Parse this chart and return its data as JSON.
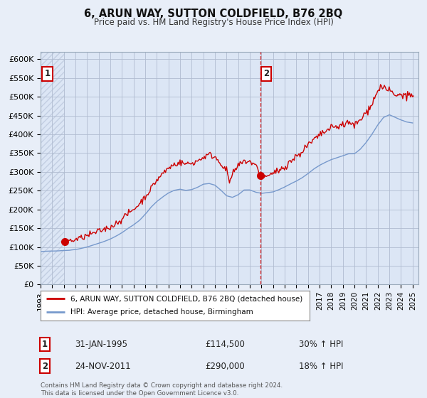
{
  "title1": "6, ARUN WAY, SUTTON COLDFIELD, B76 2BQ",
  "title2": "Price paid vs. HM Land Registry's House Price Index (HPI)",
  "bg_color": "#e8eef8",
  "plot_bg": "#dce6f5",
  "red_color": "#cc0000",
  "blue_color": "#7799cc",
  "grid_color": "#b0bcd0",
  "legend1": "6, ARUN WAY, SUTTON COLDFIELD, B76 2BQ (detached house)",
  "legend2": "HPI: Average price, detached house, Birmingham",
  "annotation1_label": "1",
  "annotation1_date": "31-JAN-1995",
  "annotation1_price": "£114,500",
  "annotation1_hpi": "30% ↑ HPI",
  "annotation2_label": "2",
  "annotation2_date": "24-NOV-2011",
  "annotation2_price": "£290,000",
  "annotation2_hpi": "18% ↑ HPI",
  "footer": "Contains HM Land Registry data © Crown copyright and database right 2024.\nThis data is licensed under the Open Government Licence v3.0.",
  "sale1_x": 1995.08,
  "sale1_y": 114500,
  "sale2_x": 2011.9,
  "sale2_y": 290000,
  "vline_x": 2011.9,
  "ylim": [
    0,
    620000
  ],
  "xlim_start": 1993.0,
  "xlim_end": 2025.5,
  "yticks": [
    0,
    50000,
    100000,
    150000,
    200000,
    250000,
    300000,
    350000,
    400000,
    450000,
    500000,
    550000,
    600000
  ],
  "xticks": [
    1993,
    1994,
    1995,
    1996,
    1997,
    1998,
    1999,
    2000,
    2001,
    2002,
    2003,
    2004,
    2005,
    2006,
    2007,
    2008,
    2009,
    2010,
    2011,
    2012,
    2013,
    2014,
    2015,
    2016,
    2017,
    2018,
    2019,
    2020,
    2021,
    2022,
    2023,
    2024,
    2025
  ]
}
